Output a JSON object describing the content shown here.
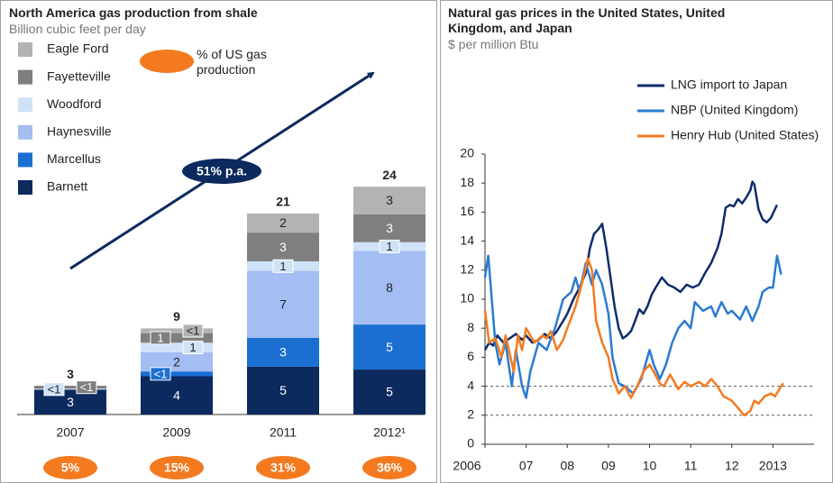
{
  "chart_data": [
    {
      "type": "bar",
      "title": "North America gas production from shale",
      "subtitle": "Billion cubic feet per day",
      "categories": [
        "2007",
        "2009",
        "2011",
        "2012¹"
      ],
      "series": [
        {
          "name": "Barnett",
          "color": "#0c2a5e",
          "values": [
            2.6,
            4,
            5,
            4.7
          ],
          "value_labels": [
            "3",
            "4",
            "5",
            "5"
          ]
        },
        {
          "name": "Marcellus",
          "color": "#1a6fd1",
          "values": [
            0,
            0.5,
            3,
            4.7
          ],
          "value_labels": [
            null,
            "<1",
            "3",
            "5"
          ]
        },
        {
          "name": "Haynesville",
          "color": "#a4bdf3",
          "values": [
            0,
            2,
            7,
            7.7
          ],
          "value_labels": [
            null,
            "2",
            "7",
            "8"
          ]
        },
        {
          "name": "Woodford",
          "color": "#cfe2f7",
          "values": [
            0.1,
            1,
            1,
            0.9
          ],
          "value_labels": [
            "<1",
            "1",
            "1",
            "1"
          ]
        },
        {
          "name": "Fayetteville",
          "color": "#7f7f7f",
          "values": [
            0.3,
            1,
            3,
            2.9
          ],
          "value_labels": [
            "<1",
            "1",
            "3",
            "3"
          ]
        },
        {
          "name": "Eagle Ford",
          "color": "#b3b3b3",
          "values": [
            0,
            0.5,
            2,
            2.9
          ],
          "value_labels": [
            null,
            "<1",
            "2",
            "3"
          ]
        }
      ],
      "totals": [
        3,
        9,
        21,
        24
      ],
      "pct_legend": "% of US gas production",
      "pct_color": "#f47a20",
      "pct_values": [
        5,
        15,
        31,
        36
      ],
      "pct_labels": [
        "5%",
        "15%",
        "31%",
        "36%"
      ],
      "annotation": "51% p.a.",
      "annotation_color": "#0c2a5e"
    },
    {
      "type": "line",
      "title": "Natural gas prices in the United States, United Kingdom, and Japan",
      "subtitle": "$ per million Btu",
      "xlim": [
        2006,
        2014
      ],
      "xticks": [
        2006,
        {
          "value": 2007,
          "label": "07"
        },
        {
          "value": 2008,
          "label": "08"
        },
        {
          "value": 2009,
          "label": "09"
        },
        {
          "value": 2010,
          "label": "10"
        },
        {
          "value": 2011,
          "label": "11"
        },
        {
          "value": 2012,
          "label": "12"
        },
        2013
      ],
      "ylim": [
        0,
        20
      ],
      "yticks": [
        0,
        2,
        4,
        6,
        8,
        10,
        12,
        14,
        16,
        18,
        20
      ],
      "hlines": [
        2,
        4
      ],
      "legend": "upper right",
      "series": [
        {
          "name": "LNG import to Japan",
          "color": "#0d2c6c",
          "x": [
            2006.0,
            2006.1,
            2006.2,
            2006.3,
            2006.45,
            2006.6,
            2006.75,
            2006.9,
            2007.0,
            2007.15,
            2007.3,
            2007.45,
            2007.6,
            2007.75,
            2007.9,
            2008.0,
            2008.15,
            2008.3,
            2008.45,
            2008.55,
            2008.65,
            2008.75,
            2008.85,
            2008.95,
            2009.05,
            2009.15,
            2009.25,
            2009.35,
            2009.45,
            2009.55,
            2009.65,
            2009.75,
            2009.85,
            2009.95,
            2010.05,
            2010.15,
            2010.3,
            2010.45,
            2010.6,
            2010.75,
            2010.9,
            2011.05,
            2011.2,
            2011.35,
            2011.5,
            2011.65,
            2011.75,
            2011.85,
            2011.95,
            2012.05,
            2012.15,
            2012.25,
            2012.35,
            2012.45,
            2012.5,
            2012.55,
            2012.65,
            2012.75,
            2012.85,
            2012.95,
            2013.1
          ],
          "values": [
            6.5,
            7.0,
            6.8,
            7.5,
            7.0,
            7.3,
            7.6,
            7.2,
            7.5,
            7.0,
            7.2,
            7.6,
            7.3,
            7.8,
            8.5,
            9.0,
            10.0,
            10.8,
            11.8,
            13.5,
            14.5,
            14.8,
            15.2,
            13.5,
            11.5,
            9.5,
            8.0,
            7.3,
            7.5,
            7.8,
            8.5,
            9.3,
            9.0,
            9.5,
            10.3,
            10.8,
            11.5,
            11.0,
            10.8,
            10.5,
            11.0,
            10.8,
            11.0,
            11.8,
            12.5,
            13.5,
            14.5,
            16.3,
            16.5,
            16.4,
            16.9,
            16.6,
            17.0,
            17.5,
            18.1,
            17.9,
            16.2,
            15.5,
            15.3,
            15.6,
            16.5
          ]
        },
        {
          "name": "NBP (United Kingdom)",
          "color": "#2a7bd1",
          "x": [
            2006.0,
            2006.08,
            2006.25,
            2006.35,
            2006.5,
            2006.65,
            2006.75,
            2006.9,
            2007.0,
            2007.1,
            2007.3,
            2007.5,
            2007.7,
            2007.9,
            2008.1,
            2008.2,
            2008.3,
            2008.45,
            2008.6,
            2008.7,
            2008.85,
            2009.0,
            2009.1,
            2009.25,
            2009.4,
            2009.6,
            2009.8,
            2009.9,
            2010.0,
            2010.1,
            2010.25,
            2010.4,
            2010.55,
            2010.7,
            2010.85,
            2011.0,
            2011.1,
            2011.3,
            2011.5,
            2011.6,
            2011.75,
            2011.9,
            2012.0,
            2012.2,
            2012.35,
            2012.5,
            2012.65,
            2012.75,
            2012.9,
            2013.0,
            2013.1,
            2013.2
          ],
          "values": [
            11.5,
            13,
            7,
            5.5,
            7,
            4,
            6.5,
            4,
            3.2,
            5,
            7,
            6.5,
            8,
            10,
            10.5,
            11.5,
            10.5,
            12.5,
            11,
            12,
            11,
            9,
            6,
            4.2,
            4,
            3.5,
            4.5,
            5.5,
            6.5,
            5.5,
            4.5,
            5.5,
            7,
            8,
            8.5,
            8,
            9.8,
            9.2,
            9.5,
            8.8,
            9.8,
            9,
            9.2,
            8.6,
            9.5,
            8.5,
            9.5,
            10.5,
            10.8,
            10.8,
            13,
            11.7
          ]
        },
        {
          "name": "Henry Hub (United States)",
          "color": "#f47a20",
          "x": [
            2006.0,
            2006.1,
            2006.25,
            2006.4,
            2006.5,
            2006.7,
            2006.8,
            2006.9,
            2007.0,
            2007.2,
            2007.4,
            2007.5,
            2007.6,
            2007.75,
            2007.9,
            2008.0,
            2008.2,
            2008.35,
            2008.5,
            2008.6,
            2008.7,
            2008.85,
            2009.0,
            2009.1,
            2009.25,
            2009.4,
            2009.55,
            2009.7,
            2009.85,
            2010.0,
            2010.1,
            2010.25,
            2010.35,
            2010.5,
            2010.7,
            2010.85,
            2011.0,
            2011.2,
            2011.35,
            2011.5,
            2011.65,
            2011.8,
            2012.0,
            2012.15,
            2012.3,
            2012.45,
            2012.55,
            2012.65,
            2012.8,
            2012.95,
            2013.05,
            2013.2,
            2013.25
          ],
          "values": [
            9.2,
            7,
            7.3,
            6,
            7.5,
            5,
            7.5,
            6.5,
            8,
            7,
            7.5,
            7.3,
            7.8,
            6.5,
            7.2,
            8,
            9.5,
            11,
            12.8,
            12,
            8.5,
            7,
            6,
            4.5,
            3.5,
            4,
            3.2,
            4,
            5,
            5.5,
            5,
            4.2,
            4,
            4.8,
            3.8,
            4.3,
            4,
            4.3,
            4,
            4.5,
            4,
            3.3,
            3,
            2.5,
            2,
            2.3,
            3,
            2.8,
            3.3,
            3.5,
            3.3,
            4,
            4.2
          ]
        }
      ]
    }
  ]
}
